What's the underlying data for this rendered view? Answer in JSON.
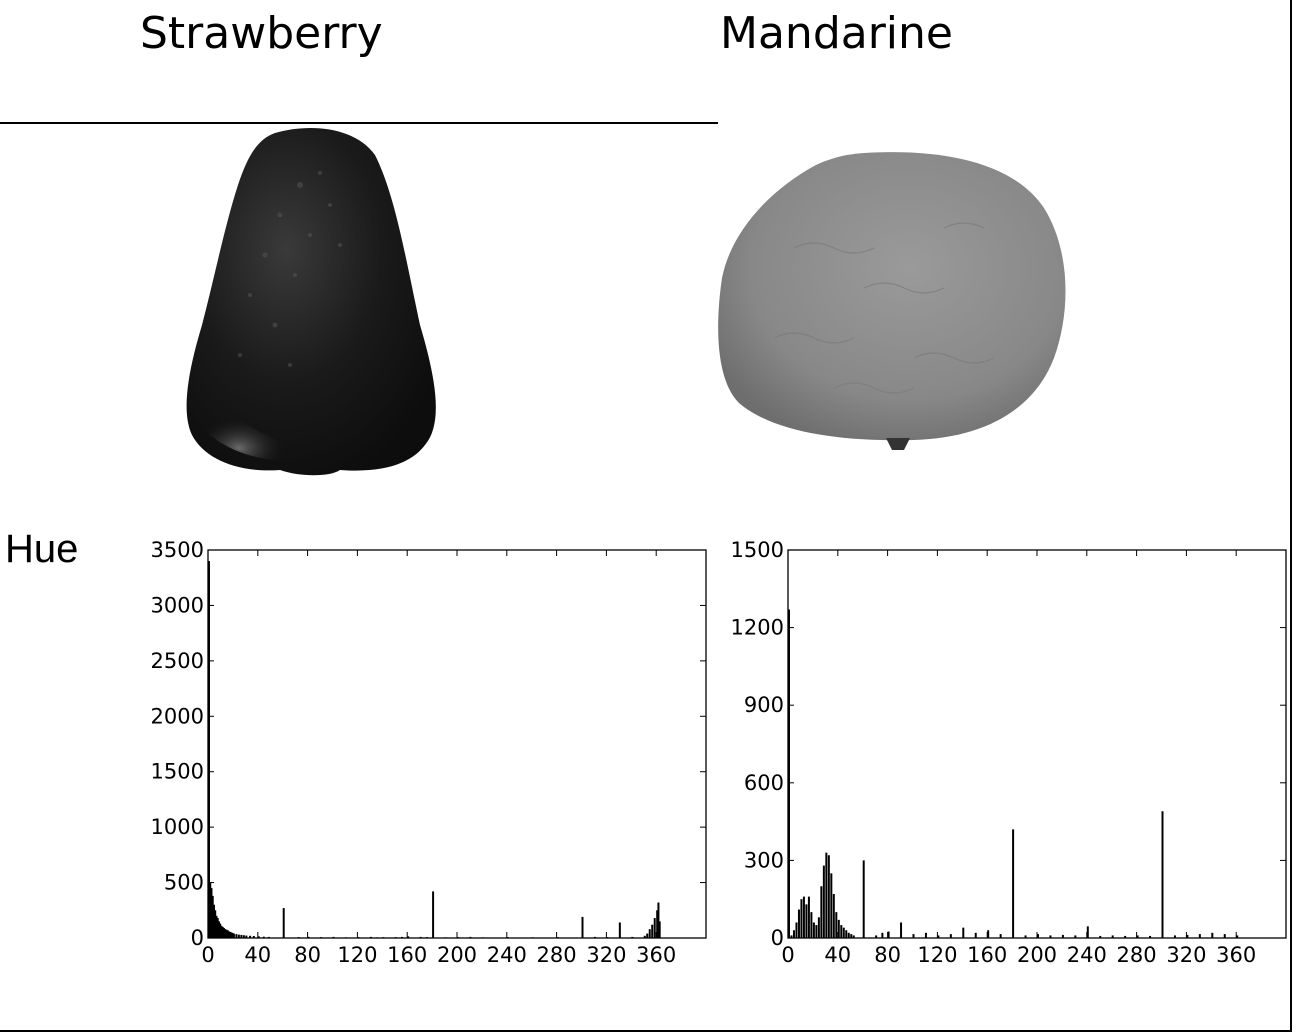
{
  "headers": {
    "strawberry": "Strawberry",
    "mandarine": "Mandarine"
  },
  "row_label": "Hue",
  "icons": {
    "strawberry_image": "strawberry-photo",
    "mandarine_image": "mandarine-photo"
  },
  "colors": {
    "bars": "#000000",
    "axes": "#000000",
    "background": "#ffffff"
  },
  "chart_data": [
    {
      "type": "bar",
      "title": "",
      "xlabel": "",
      "ylabel": "",
      "xlim": [
        0,
        400
      ],
      "ylim": [
        0,
        3500
      ],
      "xticks": [
        0,
        40,
        80,
        120,
        160,
        200,
        240,
        280,
        320,
        360
      ],
      "yticks": [
        0,
        500,
        1000,
        1500,
        2000,
        2500,
        3000,
        3500
      ],
      "grid": false,
      "x": [
        0,
        1,
        2,
        3,
        4,
        5,
        6,
        7,
        8,
        9,
        10,
        11,
        12,
        13,
        14,
        15,
        16,
        17,
        18,
        19,
        20,
        22,
        24,
        26,
        28,
        30,
        33,
        36,
        40,
        44,
        48,
        60,
        72,
        80,
        90,
        100,
        110,
        120,
        130,
        135,
        140,
        150,
        155,
        160,
        170,
        175,
        180,
        190,
        200,
        210,
        220,
        240,
        260,
        280,
        300,
        310,
        320,
        330,
        340,
        350,
        352,
        354,
        356,
        358,
        360,
        361,
        362
      ],
      "values": [
        3400,
        500,
        450,
        380,
        300,
        250,
        200,
        180,
        150,
        130,
        110,
        100,
        90,
        80,
        75,
        70,
        60,
        55,
        50,
        45,
        40,
        35,
        30,
        28,
        25,
        22,
        20,
        18,
        15,
        12,
        10,
        270,
        8,
        10,
        8,
        10,
        6,
        8,
        10,
        6,
        8,
        8,
        10,
        15,
        10,
        8,
        420,
        6,
        8,
        10,
        6,
        8,
        6,
        8,
        190,
        10,
        8,
        140,
        10,
        20,
        40,
        80,
        120,
        180,
        250,
        320,
        150
      ]
    },
    {
      "type": "bar",
      "title": "",
      "xlabel": "",
      "ylabel": "",
      "xlim": [
        0,
        400
      ],
      "ylim": [
        0,
        1500
      ],
      "xticks": [
        0,
        40,
        80,
        120,
        160,
        200,
        240,
        280,
        320,
        360
      ],
      "yticks": [
        0,
        300,
        600,
        900,
        1200,
        1500
      ],
      "ytick_labels": [
        "0",
        "300",
        "600",
        "900",
        "1200",
        "1500"
      ],
      "grid": false,
      "x": [
        0,
        2,
        4,
        6,
        8,
        10,
        12,
        14,
        16,
        18,
        20,
        22,
        24,
        26,
        28,
        30,
        32,
        34,
        36,
        38,
        40,
        42,
        44,
        46,
        48,
        50,
        52,
        60,
        70,
        75,
        80,
        90,
        100,
        110,
        120,
        130,
        140,
        150,
        160,
        170,
        180,
        190,
        200,
        210,
        220,
        230,
        240,
        250,
        260,
        270,
        280,
        290,
        300,
        310,
        320,
        330,
        340,
        350,
        360
      ],
      "values": [
        1270,
        10,
        30,
        60,
        110,
        150,
        160,
        130,
        160,
        100,
        60,
        50,
        80,
        200,
        280,
        330,
        320,
        250,
        170,
        100,
        70,
        50,
        40,
        30,
        20,
        15,
        10,
        300,
        10,
        20,
        25,
        60,
        15,
        20,
        10,
        15,
        40,
        20,
        30,
        15,
        420,
        10,
        15,
        10,
        12,
        10,
        45,
        8,
        10,
        8,
        10,
        8,
        490,
        10,
        12,
        15,
        20,
        15,
        10
      ]
    }
  ]
}
